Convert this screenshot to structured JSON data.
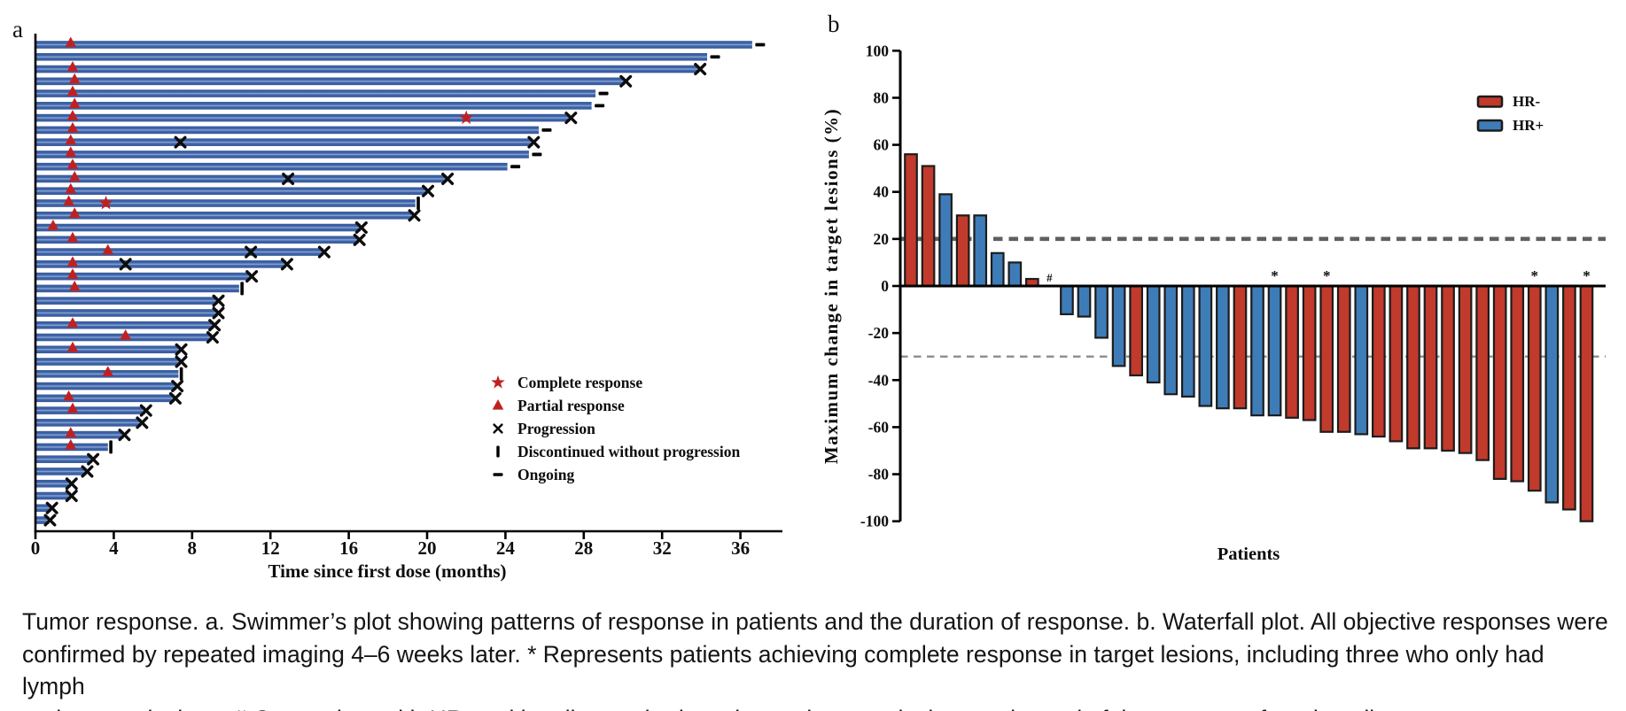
{
  "panels": {
    "a_label": "a",
    "b_label": "b"
  },
  "caption": {
    "lines": [
      "Tumor response. a. Swimmer’s plot showing patterns of response in patients and the duration of response. b. Waterfall plot. All objective responses were",
      "confirmed by repeated imaging 4–6 weeks later. * Represents patients achieving complete response in target lesions, including three who only had lymph",
      "node target lesions. # One patient with HR-positive disease had no change in target lesions at the end of the treatment from baseline."
    ]
  },
  "chart_data": [
    {
      "type": "swimmer",
      "panel_label": "a",
      "xlabel": "Time since first dose (months)",
      "x_ticks": [
        0,
        4,
        8,
        12,
        16,
        20,
        24,
        28,
        32,
        36
      ],
      "xlim": [
        0,
        38.2
      ],
      "legend": [
        {
          "symbol": "star",
          "label": "Complete response"
        },
        {
          "symbol": "triangle",
          "label": "Partial response"
        },
        {
          "symbol": "x",
          "label": "Progression"
        },
        {
          "symbol": "pipe",
          "label": "Discontinued without progression"
        },
        {
          "symbol": "dash",
          "label": "Ongoing"
        }
      ],
      "colors": {
        "bar": "#3a61a7",
        "bar_light": "#93abd6",
        "marker_red": "#c22020",
        "marker_black": "#0d0d0d",
        "axis": "#000000"
      },
      "patients": [
        {
          "months": 36.6,
          "end": "ongoing",
          "pr": 1.8,
          "cr": null,
          "progression_marks": []
        },
        {
          "months": 34.3,
          "end": "ongoing",
          "pr": null,
          "cr": null,
          "progression_marks": []
        },
        {
          "months": 33.9,
          "end": "x",
          "pr": 1.9,
          "cr": null,
          "progression_marks": []
        },
        {
          "months": 30.1,
          "end": "x",
          "pr": 2.0,
          "cr": null,
          "progression_marks": []
        },
        {
          "months": 28.6,
          "end": "ongoing",
          "pr": 1.9,
          "cr": null,
          "progression_marks": []
        },
        {
          "months": 28.4,
          "end": "ongoing",
          "pr": 2.0,
          "cr": null,
          "progression_marks": []
        },
        {
          "months": 27.3,
          "end": "x",
          "pr": 1.9,
          "cr": 22.0,
          "progression_marks": []
        },
        {
          "months": 25.7,
          "end": "ongoing",
          "pr": 1.9,
          "cr": null,
          "progression_marks": []
        },
        {
          "months": 25.4,
          "end": "x",
          "pr": 1.8,
          "cr": null,
          "progression_marks": [
            7.4
          ]
        },
        {
          "months": 25.2,
          "end": "ongoing",
          "pr": 1.8,
          "cr": null,
          "progression_marks": []
        },
        {
          "months": 24.1,
          "end": "ongoing",
          "pr": 1.9,
          "cr": null,
          "progression_marks": []
        },
        {
          "months": 21.0,
          "end": "x",
          "pr": 2.0,
          "cr": null,
          "progression_marks": [
            12.9
          ]
        },
        {
          "months": 20.0,
          "end": "x",
          "pr": 1.8,
          "cr": null,
          "progression_marks": []
        },
        {
          "months": 19.4,
          "end": "pipe",
          "pr": 1.7,
          "cr": 3.6,
          "progression_marks": []
        },
        {
          "months": 19.3,
          "end": "x",
          "pr": 2.0,
          "cr": null,
          "progression_marks": []
        },
        {
          "months": 16.6,
          "end": "x",
          "pr": 0.9,
          "cr": null,
          "progression_marks": []
        },
        {
          "months": 16.5,
          "end": "x",
          "pr": 1.9,
          "cr": null,
          "progression_marks": []
        },
        {
          "months": 14.7,
          "end": "x",
          "pr": 3.7,
          "cr": null,
          "progression_marks": [
            11.0
          ]
        },
        {
          "months": 12.8,
          "end": "x",
          "pr": 1.9,
          "cr": null,
          "progression_marks": [
            4.6
          ]
        },
        {
          "months": 11.0,
          "end": "x",
          "pr": 1.9,
          "cr": null,
          "progression_marks": []
        },
        {
          "months": 10.4,
          "end": "pipe",
          "pr": 2.0,
          "cr": null,
          "progression_marks": []
        },
        {
          "months": 9.3,
          "end": "x",
          "pr": null,
          "cr": null,
          "progression_marks": []
        },
        {
          "months": 9.3,
          "end": "x",
          "pr": null,
          "cr": null,
          "progression_marks": []
        },
        {
          "months": 9.1,
          "end": "x",
          "pr": 1.9,
          "cr": null,
          "progression_marks": []
        },
        {
          "months": 9.0,
          "end": "x",
          "pr": 4.6,
          "cr": null,
          "progression_marks": []
        },
        {
          "months": 7.4,
          "end": "x",
          "pr": 1.9,
          "cr": null,
          "progression_marks": []
        },
        {
          "months": 7.4,
          "end": "x",
          "pr": null,
          "cr": null,
          "progression_marks": []
        },
        {
          "months": 7.3,
          "end": "pipe",
          "pr": 3.7,
          "cr": null,
          "progression_marks": []
        },
        {
          "months": 7.2,
          "end": "x",
          "pr": null,
          "cr": null,
          "progression_marks": []
        },
        {
          "months": 7.1,
          "end": "x",
          "pr": 1.7,
          "cr": null,
          "progression_marks": []
        },
        {
          "months": 5.6,
          "end": "x",
          "pr": 1.9,
          "cr": null,
          "progression_marks": []
        },
        {
          "months": 5.4,
          "end": "x",
          "pr": null,
          "cr": null,
          "progression_marks": []
        },
        {
          "months": 4.5,
          "end": "x",
          "pr": 1.8,
          "cr": null,
          "progression_marks": []
        },
        {
          "months": 3.7,
          "end": "pipe",
          "pr": 1.8,
          "cr": null,
          "progression_marks": []
        },
        {
          "months": 2.9,
          "end": "x",
          "pr": null,
          "cr": null,
          "progression_marks": []
        },
        {
          "months": 2.6,
          "end": "x",
          "pr": null,
          "cr": null,
          "progression_marks": []
        },
        {
          "months": 1.8,
          "end": "x",
          "pr": null,
          "cr": null,
          "progression_marks": []
        },
        {
          "months": 1.8,
          "end": "x",
          "pr": null,
          "cr": null,
          "progression_marks": []
        },
        {
          "months": 0.8,
          "end": "x",
          "pr": null,
          "cr": null,
          "progression_marks": []
        },
        {
          "months": 0.7,
          "end": "x",
          "pr": null,
          "cr": null,
          "progression_marks": []
        }
      ]
    },
    {
      "type": "waterfall",
      "panel_label": "b",
      "ylabel": "Maximum change in target lesions (%)",
      "xlabel": "Patients",
      "y_ticks": [
        100,
        80,
        60,
        40,
        20,
        0,
        -20,
        -40,
        -60,
        -80,
        -100
      ],
      "ylim": [
        -100,
        100
      ],
      "thresholds": [
        20,
        -30
      ],
      "legend": [
        {
          "label": "HR-",
          "color": "#c13a2c"
        },
        {
          "label": "HR+",
          "color": "#3e7cb8"
        }
      ],
      "colors": {
        "hr_neg": "#c13a2c",
        "hr_pos": "#3e7cb8",
        "outline": "#1c1c1c",
        "dash_major": "#5f5f5f",
        "dash_minor": "#8c8c8c"
      },
      "bars": [
        {
          "value": 56,
          "group": "HR-",
          "flag": null
        },
        {
          "value": 51,
          "group": "HR-",
          "flag": null
        },
        {
          "value": 39,
          "group": "HR+",
          "flag": null
        },
        {
          "value": 30,
          "group": "HR-",
          "flag": null
        },
        {
          "value": 30,
          "group": "HR+",
          "flag": null
        },
        {
          "value": 14,
          "group": "HR+",
          "flag": null
        },
        {
          "value": 10,
          "group": "HR+",
          "flag": null
        },
        {
          "value": 3,
          "group": "HR-",
          "flag": null
        },
        {
          "value": 0,
          "group": "HR+",
          "flag": "#"
        },
        {
          "value": -12,
          "group": "HR+",
          "flag": null
        },
        {
          "value": -13,
          "group": "HR+",
          "flag": null
        },
        {
          "value": -22,
          "group": "HR+",
          "flag": null
        },
        {
          "value": -34,
          "group": "HR+",
          "flag": null
        },
        {
          "value": -38,
          "group": "HR-",
          "flag": null
        },
        {
          "value": -41,
          "group": "HR+",
          "flag": null
        },
        {
          "value": -46,
          "group": "HR+",
          "flag": null
        },
        {
          "value": -47,
          "group": "HR+",
          "flag": null
        },
        {
          "value": -51,
          "group": "HR+",
          "flag": null
        },
        {
          "value": -52,
          "group": "HR+",
          "flag": null
        },
        {
          "value": -52,
          "group": "HR-",
          "flag": null
        },
        {
          "value": -55,
          "group": "HR+",
          "flag": null
        },
        {
          "value": -55,
          "group": "HR+",
          "flag": "*"
        },
        {
          "value": -56,
          "group": "HR-",
          "flag": null
        },
        {
          "value": -57,
          "group": "HR-",
          "flag": null
        },
        {
          "value": -62,
          "group": "HR-",
          "flag": "*"
        },
        {
          "value": -62,
          "group": "HR-",
          "flag": null
        },
        {
          "value": -63,
          "group": "HR+",
          "flag": null
        },
        {
          "value": -64,
          "group": "HR-",
          "flag": null
        },
        {
          "value": -66,
          "group": "HR-",
          "flag": null
        },
        {
          "value": -69,
          "group": "HR-",
          "flag": null
        },
        {
          "value": -69,
          "group": "HR-",
          "flag": null
        },
        {
          "value": -70,
          "group": "HR-",
          "flag": null
        },
        {
          "value": -71,
          "group": "HR-",
          "flag": null
        },
        {
          "value": -74,
          "group": "HR-",
          "flag": null
        },
        {
          "value": -82,
          "group": "HR-",
          "flag": null
        },
        {
          "value": -83,
          "group": "HR-",
          "flag": null
        },
        {
          "value": -87,
          "group": "HR-",
          "flag": "*"
        },
        {
          "value": -92,
          "group": "HR+",
          "flag": null
        },
        {
          "value": -95,
          "group": "HR-",
          "flag": null
        },
        {
          "value": -100,
          "group": "HR-",
          "flag": "*"
        }
      ]
    }
  ]
}
